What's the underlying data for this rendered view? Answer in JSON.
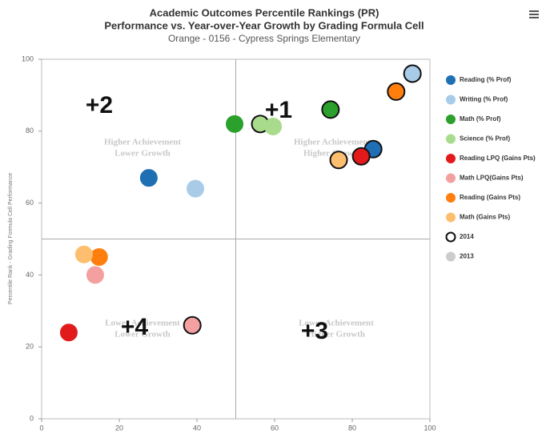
{
  "chart_data": {
    "type": "scatter",
    "title": "Academic Outcomes Percentile Rankings (PR)",
    "subtitle": "Performance vs. Year-over-Year Growth by Grading Formula Cell",
    "caption": "Orange - 0156 - Cypress Springs Elementary",
    "ylabel": "Percentile Rank - Grading Formula Cell Performance",
    "xlim": [
      0,
      100
    ],
    "ylim": [
      0,
      100
    ],
    "xticks": [
      0,
      20,
      40,
      60,
      80,
      100
    ],
    "yticks": [
      0,
      20,
      40,
      60,
      80,
      100
    ],
    "dividers": {
      "x": 50,
      "y": 50
    },
    "quadrant_labels": [
      {
        "lines": [
          "Higher Achievement",
          "Lower Growth"
        ]
      },
      {
        "lines": [
          "Higher Achievement",
          "Higher Growth"
        ]
      },
      {
        "lines": [
          "Lower Achievement",
          "Lower Growth"
        ]
      },
      {
        "lines": [
          "Lower Achievement",
          "Higher Growth"
        ]
      }
    ],
    "cell_labels": [
      "+2",
      "+1",
      "+4",
      "+3"
    ],
    "years": [
      {
        "label": "2014",
        "outline": true
      },
      {
        "label": "2013",
        "outline": false
      }
    ],
    "series": [
      {
        "name": "Reading (% Prof)",
        "color": "#1f6fb5",
        "x": [
          85.4,
          27.6
        ],
        "y": [
          75,
          67
        ]
      },
      {
        "name": "Writing (% Prof)",
        "color": "#a8cbe8",
        "x": [
          95.5,
          39.6
        ],
        "y": [
          96,
          64
        ]
      },
      {
        "name": "Math (% Prof)",
        "color": "#2ca02c",
        "x": [
          74.4,
          49.7
        ],
        "y": [
          86,
          82
        ]
      },
      {
        "name": "Science (% Prof)",
        "color": "#a8dc8c",
        "x": [
          56.3,
          59.6
        ],
        "y": [
          82,
          81.3
        ]
      },
      {
        "name": "Reading LPQ (Gains Pts)",
        "color": "#e31a1c",
        "x": [
          82.3,
          7
        ],
        "y": [
          73,
          24
        ]
      },
      {
        "name": "Math LPQ(Gains Pts)",
        "color": "#f4a0a0",
        "x": [
          38.8,
          13.8
        ],
        "y": [
          26,
          40
        ]
      },
      {
        "name": "Reading (Gains Pts)",
        "color": "#ff7f0e",
        "x": [
          91.3,
          14.8
        ],
        "y": [
          91,
          45
        ]
      },
      {
        "name": "Math (Gains Pts)",
        "color": "#fdbf6f",
        "x": [
          76.5,
          10.9
        ],
        "y": [
          72,
          45.7
        ]
      }
    ]
  }
}
